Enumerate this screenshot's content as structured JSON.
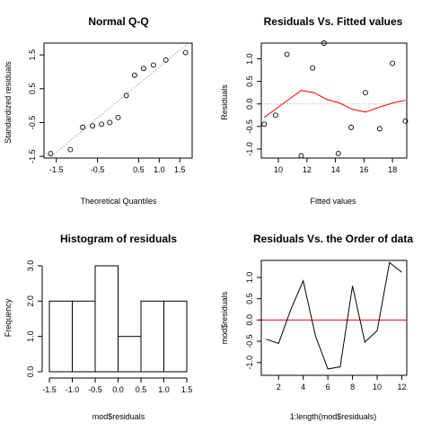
{
  "chart_data": [
    {
      "type": "scatter",
      "title": "Normal Q-Q",
      "xlabel": "Theoretical Quantiles",
      "ylabel": "Standardized residuals",
      "xlim": [
        -1.8,
        1.8
      ],
      "ylim": [
        -1.55,
        1.85
      ],
      "xticks": [
        -1.5,
        -0.5,
        0.5,
        1.0,
        1.5
      ],
      "xtick_labels": [
        "-1.5",
        "-0.5",
        "0.5",
        "1.0",
        "1.5"
      ],
      "yticks": [
        -1.5,
        -0.5,
        0.5,
        1.5
      ],
      "ytick_labels": [
        "-1.5",
        "-0.5",
        "0.5",
        "1.5"
      ],
      "x": [
        -1.64,
        -1.16,
        -0.86,
        -0.62,
        -0.4,
        -0.2,
        0.0,
        0.2,
        0.4,
        0.62,
        0.86,
        1.16,
        1.64
      ],
      "y": [
        -1.42,
        -1.3,
        -0.64,
        -0.6,
        -0.55,
        -0.5,
        -0.35,
        0.3,
        0.9,
        1.1,
        1.2,
        1.35,
        1.57
      ],
      "reference_line": [
        [
          -1.8,
          -1.68
        ],
        [
          1.8,
          1.95
        ]
      ]
    },
    {
      "type": "scatter",
      "title": "Residuals Vs. Fitted values",
      "xlabel": "Fitted values",
      "ylabel": "Residuals",
      "xlim": [
        8.8,
        19.0
      ],
      "ylim": [
        -1.2,
        1.35
      ],
      "xticks": [
        10,
        12,
        14,
        16,
        18
      ],
      "xtick_labels": [
        "10",
        "12",
        "14",
        "16",
        "18"
      ],
      "yticks": [
        -1.0,
        -0.5,
        0.0,
        0.5,
        1.0
      ],
      "ytick_labels": [
        "-1.0",
        "-0.5",
        "0.0",
        "0.5",
        "1.0"
      ],
      "x": [
        9.0,
        9.8,
        10.6,
        11.6,
        12.4,
        13.2,
        14.2,
        15.1,
        16.1,
        17.1,
        18.0,
        18.9
      ],
      "y": [
        -0.45,
        -0.25,
        1.1,
        -1.15,
        0.8,
        1.35,
        -1.1,
        -0.52,
        0.25,
        -0.55,
        0.9,
        -0.38
      ],
      "smooth_line": {
        "color": "#ff0000",
        "x": [
          9.0,
          10.3,
          11.6,
          12.5,
          13.4,
          14.3,
          15.2,
          16.1,
          17.0,
          18.0,
          18.9
        ],
        "y": [
          -0.3,
          0.0,
          0.3,
          0.25,
          0.1,
          0.02,
          -0.12,
          -0.18,
          -0.08,
          0.02,
          0.08
        ]
      },
      "zero_line_color": "#aaaaaa"
    },
    {
      "type": "bar",
      "title": "Histogram of residuals",
      "xlabel": "mod$residuals",
      "ylabel": "Frequency",
      "bin_edges": [
        -1.5,
        -1.0,
        -0.5,
        0.0,
        0.5,
        1.0,
        1.5
      ],
      "values": [
        2,
        2,
        3,
        1,
        2,
        2
      ],
      "xlim": [
        -1.5,
        1.5
      ],
      "ylim": [
        0,
        3
      ],
      "xticks": [
        -1.5,
        -1.0,
        -0.5,
        0.0,
        0.5,
        1.0,
        1.5
      ],
      "xtick_labels": [
        "-1.5",
        "-1.0",
        "-0.5",
        "0.0",
        "0.5",
        "1.0",
        "1.5"
      ],
      "yticks": [
        0,
        1,
        2,
        3
      ],
      "ytick_labels": [
        "0.0",
        "1.0",
        "2.0",
        "3.0"
      ]
    },
    {
      "type": "line",
      "title": "Residuals Vs. the Order of data",
      "xlabel": "1:length(mod$residuals)",
      "ylabel": "mod$residuals",
      "xlim": [
        0.6,
        12.4
      ],
      "ylim": [
        -1.3,
        1.4
      ],
      "xticks": [
        2,
        4,
        6,
        8,
        10,
        12
      ],
      "xtick_labels": [
        "2",
        "4",
        "6",
        "8",
        "10",
        "12"
      ],
      "yticks": [
        -1.0,
        -0.5,
        0.0,
        0.5,
        1.0
      ],
      "ytick_labels": [
        "-1.0",
        "-0.5",
        "0.0",
        "0.5",
        "1.0"
      ],
      "x": [
        1,
        2,
        3,
        4,
        5,
        6,
        7,
        8,
        9,
        10,
        11,
        12
      ],
      "y": [
        -0.45,
        -0.55,
        0.25,
        0.92,
        -0.38,
        -1.15,
        -1.1,
        0.8,
        -0.52,
        -0.25,
        1.35,
        1.12
      ],
      "zero_line_color": "#ff0000"
    }
  ]
}
